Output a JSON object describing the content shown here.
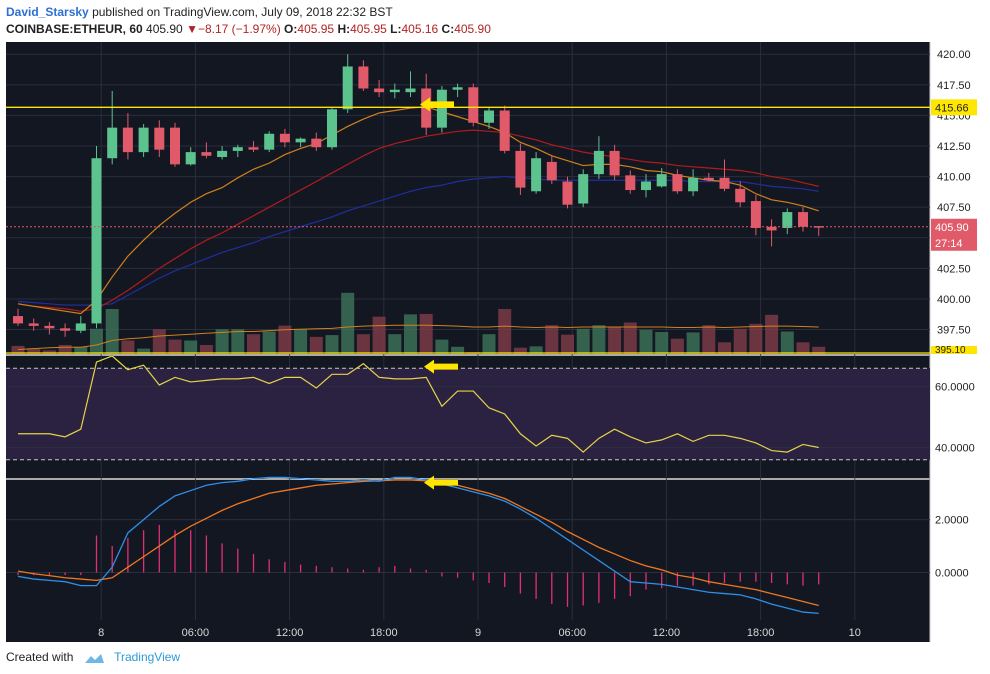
{
  "header": {
    "author": "David_Starsky",
    "published_text": "published on TradingView.com, July 09, 2018 22:32 BST",
    "symbol": "COINBASE:ETHEUR, 60",
    "last": "405.90",
    "change": "−8.17 (−1.97%)",
    "ohlc": {
      "o_label": "O:",
      "o": "405.95",
      "h_label": "H:",
      "h": "405.95",
      "l_label": "L:",
      "l": "405.16",
      "c_label": "C:",
      "c": "405.90"
    }
  },
  "footer": {
    "created_with": "Created with",
    "brand": "TradingView"
  },
  "colors": {
    "bg": "#131722",
    "grid": "#2a2e3d",
    "bull": "#5cc28e",
    "bear": "#e05a6a",
    "ma_fast": "#d0821a",
    "ma_mid": "#b01c1c",
    "ma_slow": "#1f2f9e",
    "hline": "#ffe600",
    "rsi": "#e6d44a",
    "macd": "#2e8fe8",
    "signal": "#ee7722",
    "hist": "#e0306f",
    "arrow": "#ffe600",
    "price_tag": "#e05a6a"
  },
  "chart_data": [
    {
      "type": "candlestick",
      "panel": "price",
      "ylim": [
        395.5,
        421.0
      ],
      "y_ticks": [
        "420.00",
        "417.50",
        "415.00",
        "412.50",
        "410.00",
        "407.50",
        "405.00",
        "402.50",
        "400.00",
        "397.50"
      ],
      "x_ticks": [
        "8",
        "06:00",
        "12:00",
        "18:00",
        "9",
        "06:00",
        "12:00",
        "18:00",
        "10"
      ],
      "candles": [
        {
          "o": 398.6,
          "h": 399.2,
          "l": 397.8,
          "c": 398.0
        },
        {
          "o": 398.0,
          "h": 398.4,
          "l": 397.4,
          "c": 397.8
        },
        {
          "o": 397.8,
          "h": 398.1,
          "l": 397.1,
          "c": 397.6
        },
        {
          "o": 397.6,
          "h": 398.0,
          "l": 396.9,
          "c": 397.4
        },
        {
          "o": 397.4,
          "h": 398.6,
          "l": 397.2,
          "c": 398.0
        },
        {
          "o": 398.0,
          "h": 412.5,
          "l": 397.6,
          "c": 411.5
        },
        {
          "o": 411.5,
          "h": 417.0,
          "l": 411.0,
          "c": 414.0
        },
        {
          "o": 414.0,
          "h": 415.2,
          "l": 411.4,
          "c": 412.0
        },
        {
          "o": 412.0,
          "h": 414.3,
          "l": 411.6,
          "c": 414.0
        },
        {
          "o": 414.0,
          "h": 414.6,
          "l": 411.6,
          "c": 412.2
        },
        {
          "o": 414.0,
          "h": 414.4,
          "l": 410.8,
          "c": 411.0
        },
        {
          "o": 411.0,
          "h": 412.4,
          "l": 410.9,
          "c": 412.0
        },
        {
          "o": 412.0,
          "h": 412.8,
          "l": 411.5,
          "c": 411.7
        },
        {
          "o": 411.6,
          "h": 412.5,
          "l": 411.4,
          "c": 412.1
        },
        {
          "o": 412.1,
          "h": 412.6,
          "l": 411.6,
          "c": 412.4
        },
        {
          "o": 412.4,
          "h": 412.9,
          "l": 412.0,
          "c": 412.2
        },
        {
          "o": 412.2,
          "h": 413.7,
          "l": 412.0,
          "c": 413.5
        },
        {
          "o": 413.5,
          "h": 413.9,
          "l": 412.4,
          "c": 412.8
        },
        {
          "o": 412.8,
          "h": 413.2,
          "l": 412.4,
          "c": 413.1
        },
        {
          "o": 413.1,
          "h": 413.6,
          "l": 412.1,
          "c": 412.4
        },
        {
          "o": 412.4,
          "h": 415.6,
          "l": 412.2,
          "c": 415.5
        },
        {
          "o": 415.5,
          "h": 420.0,
          "l": 415.2,
          "c": 419.0
        },
        {
          "o": 419.0,
          "h": 419.5,
          "l": 417.0,
          "c": 417.2
        },
        {
          "o": 417.2,
          "h": 417.9,
          "l": 416.5,
          "c": 416.9
        },
        {
          "o": 416.9,
          "h": 417.6,
          "l": 416.4,
          "c": 417.1
        },
        {
          "o": 416.9,
          "h": 418.6,
          "l": 416.5,
          "c": 417.2
        },
        {
          "o": 417.2,
          "h": 418.4,
          "l": 413.4,
          "c": 414.0
        },
        {
          "o": 414.0,
          "h": 417.4,
          "l": 413.6,
          "c": 417.1
        },
        {
          "o": 417.1,
          "h": 417.6,
          "l": 416.5,
          "c": 417.3
        },
        {
          "o": 417.3,
          "h": 417.6,
          "l": 414.1,
          "c": 414.4
        },
        {
          "o": 414.4,
          "h": 415.7,
          "l": 413.9,
          "c": 415.4
        },
        {
          "o": 415.4,
          "h": 415.8,
          "l": 411.9,
          "c": 412.1
        },
        {
          "o": 412.1,
          "h": 412.7,
          "l": 408.5,
          "c": 409.1
        },
        {
          "o": 408.8,
          "h": 412.0,
          "l": 408.6,
          "c": 411.5
        },
        {
          "o": 411.2,
          "h": 411.7,
          "l": 409.4,
          "c": 409.7
        },
        {
          "o": 409.6,
          "h": 410.0,
          "l": 407.4,
          "c": 407.7
        },
        {
          "o": 407.8,
          "h": 410.6,
          "l": 407.5,
          "c": 410.2
        },
        {
          "o": 410.2,
          "h": 413.3,
          "l": 409.8,
          "c": 412.1
        },
        {
          "o": 412.1,
          "h": 412.6,
          "l": 409.7,
          "c": 410.1
        },
        {
          "o": 410.1,
          "h": 410.5,
          "l": 408.6,
          "c": 408.9
        },
        {
          "o": 408.9,
          "h": 410.2,
          "l": 408.3,
          "c": 409.6
        },
        {
          "o": 409.2,
          "h": 410.7,
          "l": 409.1,
          "c": 410.2
        },
        {
          "o": 410.2,
          "h": 410.6,
          "l": 408.6,
          "c": 408.8
        },
        {
          "o": 408.8,
          "h": 410.6,
          "l": 408.4,
          "c": 409.9
        },
        {
          "o": 409.9,
          "h": 410.3,
          "l": 409.6,
          "c": 409.7
        },
        {
          "o": 409.9,
          "h": 411.4,
          "l": 408.8,
          "c": 409.0
        },
        {
          "o": 409.0,
          "h": 409.6,
          "l": 407.5,
          "c": 407.9
        },
        {
          "o": 408.0,
          "h": 408.5,
          "l": 405.2,
          "c": 405.8
        },
        {
          "o": 405.9,
          "h": 406.5,
          "l": 404.3,
          "c": 405.6
        },
        {
          "o": 405.8,
          "h": 407.4,
          "l": 405.3,
          "c": 407.1
        },
        {
          "o": 407.1,
          "h": 407.5,
          "l": 405.5,
          "c": 405.9
        },
        {
          "o": 405.95,
          "h": 405.95,
          "l": 405.16,
          "c": 405.9
        }
      ],
      "volume_ratio": [
        0.18,
        0.11,
        0.08,
        0.2,
        0.16,
        0.56,
        1.0,
        0.3,
        0.12,
        0.55,
        0.32,
        0.3,
        0.2,
        0.55,
        0.55,
        0.44,
        0.5,
        0.63,
        0.56,
        0.38,
        0.42,
        1.36,
        0.44,
        0.83,
        0.44,
        0.88,
        0.89,
        0.32,
        0.16,
        0.04,
        0.44,
        1.0,
        0.14,
        0.17,
        0.64,
        0.43,
        0.56,
        0.64,
        0.6,
        0.7,
        0.54,
        0.49,
        0.34,
        0.48,
        0.64,
        0.26,
        0.56,
        0.67,
        0.87,
        0.5,
        0.26,
        0.16
      ],
      "ma_fast": [
        399.6,
        399.4,
        399.2,
        399.0,
        398.8,
        399.9,
        401.8,
        403.5,
        404.8,
        406.0,
        407.0,
        407.9,
        408.6,
        409.1,
        409.9,
        410.6,
        411.1,
        411.8,
        412.3,
        412.7,
        413.4,
        414.1,
        414.7,
        415.2,
        415.4,
        415.6,
        415.7,
        415.3,
        414.9,
        414.5,
        414.1,
        413.6,
        412.8,
        412.3,
        411.7,
        411.3,
        410.9,
        411.0,
        411.0,
        410.8,
        410.5,
        410.4,
        410.1,
        409.9,
        409.7,
        409.6,
        409.3,
        408.6,
        408.1,
        407.9,
        407.6,
        407.2
      ],
      "ma_mid": [
        399.6,
        399.4,
        399.3,
        399.2,
        399.0,
        399.2,
        399.9,
        400.7,
        401.6,
        402.5,
        403.3,
        404.1,
        404.8,
        405.4,
        406.1,
        406.8,
        407.5,
        408.2,
        408.9,
        409.6,
        410.3,
        411.0,
        411.7,
        412.3,
        412.7,
        413.0,
        413.3,
        413.5,
        413.7,
        413.8,
        413.7,
        413.6,
        413.3,
        413.0,
        412.6,
        412.3,
        412.0,
        411.8,
        411.6,
        411.4,
        411.2,
        411.1,
        410.9,
        410.8,
        410.7,
        410.6,
        410.5,
        410.3,
        410.0,
        409.8,
        409.5,
        409.2
      ],
      "ma_slow": [
        399.8,
        399.7,
        399.6,
        399.5,
        399.5,
        399.5,
        399.6,
        400.3,
        401.0,
        401.7,
        402.3,
        402.8,
        403.3,
        403.8,
        404.2,
        404.6,
        405.1,
        405.5,
        405.9,
        406.3,
        406.7,
        407.2,
        407.6,
        408.0,
        408.4,
        408.8,
        409.1,
        409.3,
        409.6,
        409.8,
        409.9,
        410.0,
        409.9,
        409.8,
        409.7,
        409.7,
        409.7,
        409.7,
        409.7,
        409.7,
        409.7,
        409.7,
        409.7,
        409.6,
        409.6,
        409.6,
        409.6,
        409.4,
        409.2,
        409.1,
        409.0,
        408.8
      ],
      "vol_ma_ratio": [
        0.1,
        0.12,
        0.14,
        0.15,
        0.15,
        0.2,
        0.3,
        0.34,
        0.36,
        0.4,
        0.42,
        0.44,
        0.46,
        0.48,
        0.5,
        0.5,
        0.52,
        0.54,
        0.55,
        0.56,
        0.57,
        0.6,
        0.62,
        0.63,
        0.64,
        0.64,
        0.64,
        0.63,
        0.62,
        0.6,
        0.6,
        0.62,
        0.6,
        0.59,
        0.6,
        0.59,
        0.6,
        0.6,
        0.6,
        0.6,
        0.6,
        0.6,
        0.59,
        0.59,
        0.6,
        0.59,
        0.6,
        0.61,
        0.62,
        0.62,
        0.61,
        0.6
      ],
      "resistance_level": 415.66,
      "last_price": 405.9,
      "price_label": "415.66",
      "last_label": "405.90",
      "countdown": "27:14",
      "bottom_label": "395.10"
    },
    {
      "type": "line",
      "panel": "rsi",
      "ylim": [
        30,
        70
      ],
      "y_ticks": [
        "60.0000",
        "40.0000"
      ],
      "band": [
        36,
        66
      ],
      "values": [
        44.5,
        44.5,
        44.5,
        43.5,
        46.0,
        68.0,
        70.0,
        65.5,
        67.0,
        60.5,
        63.0,
        61.5,
        62.0,
        62.5,
        62.5,
        63.0,
        61.0,
        63.0,
        63.0,
        59.5,
        64.0,
        64.0,
        67.5,
        63.0,
        62.5,
        62.5,
        63.0,
        53.5,
        58.5,
        58.5,
        53.0,
        51.0,
        44.5,
        40.5,
        44.0,
        43.0,
        38.5,
        43.0,
        46.0,
        43.5,
        41.5,
        42.5,
        44.5,
        42.0,
        44.0,
        44.0,
        43.0,
        41.5,
        39.0,
        38.5,
        41.0,
        40.0
      ]
    },
    {
      "type": "line",
      "panel": "macd",
      "ylim": [
        -1.8,
        3.5
      ],
      "y_ticks": [
        "2.0000",
        "0.0000"
      ],
      "macd": [
        -0.15,
        -0.25,
        -0.3,
        -0.35,
        -0.5,
        -0.5,
        0.2,
        1.5,
        2.0,
        2.5,
        2.9,
        3.1,
        3.3,
        3.4,
        3.45,
        3.55,
        3.6,
        3.6,
        3.55,
        3.5,
        3.45,
        3.45,
        3.5,
        3.45,
        3.6,
        3.6,
        3.5,
        3.35,
        3.2,
        3.05,
        2.9,
        2.7,
        2.4,
        2.05,
        1.65,
        1.25,
        0.85,
        0.45,
        0.05,
        -0.35,
        -0.4,
        -0.45,
        -0.55,
        -0.65,
        -0.75,
        -0.8,
        -0.85,
        -1.0,
        -1.2,
        -1.35,
        -1.5,
        -1.55
      ],
      "signal": [
        0.05,
        -0.05,
        -0.12,
        -0.2,
        -0.25,
        -0.3,
        -0.2,
        0.2,
        0.6,
        1.0,
        1.4,
        1.75,
        2.05,
        2.35,
        2.6,
        2.8,
        3.0,
        3.1,
        3.2,
        3.3,
        3.35,
        3.4,
        3.45,
        3.47,
        3.5,
        3.5,
        3.47,
        3.4,
        3.3,
        3.15,
        3.0,
        2.8,
        2.5,
        2.2,
        1.9,
        1.55,
        1.25,
        0.95,
        0.7,
        0.45,
        0.25,
        0.1,
        -0.1,
        -0.2,
        -0.35,
        -0.45,
        -0.55,
        -0.65,
        -0.8,
        -0.95,
        -1.1,
        -1.25
      ],
      "hist": [
        -0.1,
        -0.1,
        -0.1,
        -0.1,
        -0.1,
        1.4,
        1.0,
        1.3,
        1.6,
        1.8,
        1.6,
        1.6,
        1.4,
        1.1,
        0.9,
        0.7,
        0.5,
        0.4,
        0.3,
        0.25,
        0.2,
        0.15,
        0.1,
        0.2,
        0.25,
        0.15,
        0.1,
        -0.15,
        -0.2,
        -0.3,
        -0.4,
        -0.55,
        -0.8,
        -1.0,
        -1.2,
        -1.3,
        -1.25,
        -1.15,
        -1.0,
        -0.9,
        -0.65,
        -0.6,
        -0.5,
        -0.5,
        -0.45,
        -0.4,
        -0.35,
        -0.35,
        -0.4,
        -0.45,
        -0.5,
        -0.45
      ]
    }
  ]
}
